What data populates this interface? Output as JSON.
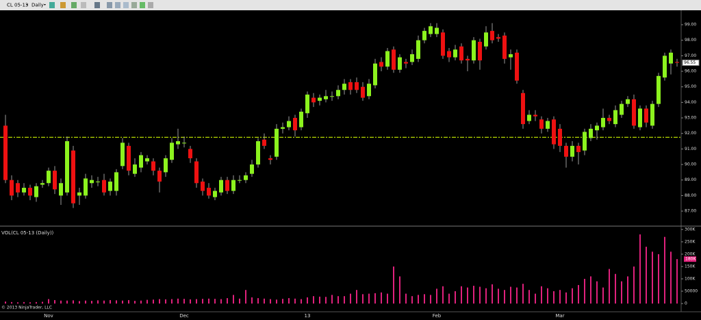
{
  "toolbar": {
    "symbol": "CL 05-13",
    "interval": "Daily"
  },
  "copyright": "© 2013 NinjaTrader, LLC",
  "chart_data": [
    {
      "type": "candlestick",
      "categories": [
        null,
        null,
        null,
        null,
        null,
        null,
        null,
        "Nov",
        null,
        null,
        null,
        null,
        null,
        null,
        null,
        null,
        null,
        null,
        null,
        null,
        null,
        null,
        null,
        null,
        null,
        null,
        null,
        null,
        null,
        "Dec",
        null,
        null,
        null,
        null,
        null,
        null,
        null,
        null,
        null,
        null,
        null,
        null,
        null,
        null,
        null,
        null,
        null,
        null,
        null,
        "13",
        null,
        null,
        null,
        null,
        null,
        null,
        null,
        null,
        null,
        null,
        null,
        null,
        null,
        null,
        null,
        null,
        null,
        null,
        null,
        null,
        "Feb",
        null,
        null,
        null,
        null,
        null,
        null,
        null,
        null,
        null,
        null,
        null,
        null,
        null,
        null,
        null,
        null,
        null,
        null,
        null,
        "Mar",
        null,
        null,
        null,
        null,
        null,
        null,
        null,
        null,
        null,
        null,
        null,
        null,
        null,
        null,
        null,
        null,
        null,
        null,
        null
      ],
      "open": [
        92.5,
        89.0,
        88.8,
        88.2,
        88.5,
        87.9,
        88.7,
        88.8,
        89.6,
        88.0,
        88.2,
        90.9,
        88.0,
        88.0,
        88.8,
        88.9,
        89.0,
        88.3,
        88.3,
        89.9,
        91.2,
        89.4,
        89.8,
        90.2,
        90.2,
        89.6,
        89.5,
        90.3,
        91.3,
        91.4,
        91.0,
        90.2,
        88.9,
        88.5,
        87.9,
        88.2,
        89.0,
        88.3,
        89.0,
        89.0,
        89.4,
        90.0,
        91.6,
        90.4,
        90.5,
        92.3,
        92.4,
        93.0,
        92.4,
        93.3,
        94.3,
        94.1,
        94.2,
        94.4,
        94.4,
        94.8,
        95.3,
        95.3,
        95.0,
        94.4,
        95.1,
        96.6,
        96.3,
        97.4,
        96.1,
        96.6,
        96.6,
        96.8,
        98.0,
        98.4,
        98.4,
        98.5,
        97.3,
        96.9,
        97.6,
        96.8,
        96.7,
        97.9,
        97.6,
        98.6,
        98.2,
        98.3,
        96.9,
        97.2,
        94.6,
        92.8,
        93.2,
        92.9,
        92.3,
        92.9,
        92.3,
        91.2,
        90.5,
        91.2,
        90.9,
        91.7,
        92.2,
        92.4,
        93.0,
        92.6,
        93.2,
        93.9,
        94.2,
        92.4,
        93.6,
        92.5,
        93.9,
        95.6,
        96.5,
        96.6
      ],
      "high": [
        93.2,
        89.3,
        89.0,
        88.8,
        88.7,
        88.8,
        89.0,
        89.8,
        89.9,
        89.1,
        91.8,
        91.2,
        88.5,
        89.4,
        89.3,
        89.2,
        89.4,
        89.1,
        89.7,
        91.7,
        91.4,
        90.4,
        90.8,
        90.6,
        90.4,
        89.8,
        90.6,
        91.7,
        92.3,
        91.8,
        91.2,
        90.4,
        89.1,
        88.8,
        88.5,
        89.2,
        89.2,
        89.3,
        89.3,
        89.5,
        90.3,
        91.7,
        92.0,
        90.6,
        92.6,
        92.7,
        93.1,
        93.2,
        93.6,
        94.7,
        94.6,
        94.5,
        94.8,
        94.7,
        95.1,
        95.5,
        95.5,
        95.6,
        95.3,
        95.5,
        96.8,
        96.9,
        97.5,
        97.6,
        97.1,
        96.8,
        97.4,
        98.3,
        98.8,
        99.1,
        99.1,
        98.7,
        97.5,
        97.7,
        97.8,
        97.0,
        98.2,
        98.1,
        98.9,
        99.1,
        98.4,
        98.5,
        97.4,
        97.4,
        94.8,
        93.5,
        93.5,
        93.1,
        93.0,
        93.1,
        92.6,
        91.4,
        91.5,
        91.4,
        92.3,
        92.6,
        92.7,
        93.6,
        93.2,
        93.8,
        94.1,
        94.4,
        94.5,
        93.8,
        93.8,
        94.1,
        95.9,
        97.2,
        97.4,
        96.8
      ],
      "low": [
        88.8,
        87.7,
        87.9,
        88.0,
        87.7,
        87.6,
        88.5,
        88.6,
        88.1,
        87.4,
        88.0,
        87.2,
        87.4,
        87.8,
        88.5,
        88.6,
        88.0,
        88.0,
        88.0,
        89.7,
        89.3,
        89.2,
        89.5,
        90.0,
        89.3,
        88.2,
        89.2,
        90.1,
        91.0,
        91.1,
        90.1,
        88.5,
        88.0,
        87.8,
        87.7,
        88.0,
        88.1,
        88.1,
        88.8,
        88.8,
        89.2,
        89.8,
        91.0,
        90.0,
        90.3,
        92.0,
        92.2,
        91.8,
        92.2,
        93.0,
        93.7,
        93.8,
        94.0,
        94.1,
        94.2,
        94.5,
        94.5,
        94.6,
        94.1,
        94.2,
        94.9,
        96.0,
        96.1,
        95.9,
        95.9,
        96.2,
        96.4,
        96.6,
        97.8,
        98.2,
        98.2,
        96.8,
        96.6,
        96.7,
        96.5,
        96.0,
        96.5,
        96.1,
        97.4,
        97.8,
        97.9,
        96.5,
        96.1,
        95.2,
        92.3,
        92.6,
        92.8,
        92.0,
        92.1,
        91.0,
        90.8,
        89.8,
        90.2,
        90.0,
        90.6,
        91.5,
        91.6,
        92.2,
        92.6,
        92.4,
        93.0,
        93.7,
        92.3,
        92.2,
        92.4,
        92.3,
        93.7,
        95.4,
        95.8,
        96.3
      ],
      "close": [
        89.0,
        88.0,
        88.2,
        88.5,
        88.0,
        88.6,
        88.8,
        89.6,
        88.4,
        88.8,
        91.5,
        87.5,
        88.2,
        89.1,
        89.0,
        88.9,
        88.2,
        88.9,
        89.5,
        91.4,
        89.6,
        90.0,
        90.6,
        90.4,
        89.6,
        88.9,
        90.4,
        91.4,
        91.5,
        91.4,
        90.4,
        88.8,
        88.3,
        88.0,
        88.3,
        89.0,
        88.3,
        89.0,
        89.0,
        89.3,
        90.0,
        91.5,
        91.2,
        90.3,
        92.3,
        92.4,
        92.8,
        92.2,
        93.4,
        94.5,
        94.0,
        94.3,
        94.4,
        94.4,
        94.8,
        95.2,
        94.8,
        94.8,
        94.3,
        95.2,
        96.5,
        96.3,
        97.3,
        96.1,
        96.9,
        96.5,
        97.1,
        98.0,
        98.6,
        98.9,
        98.8,
        97.0,
        96.9,
        97.4,
        96.7,
        96.7,
        98.0,
        96.7,
        98.5,
        98.0,
        98.1,
        96.8,
        97.1,
        95.4,
        92.6,
        93.2,
        93.1,
        92.3,
        92.8,
        91.3,
        91.2,
        90.5,
        91.2,
        90.8,
        92.1,
        92.3,
        92.5,
        93.0,
        92.8,
        93.5,
        93.9,
        94.2,
        92.5,
        93.6,
        92.7,
        93.9,
        95.7,
        97.0,
        97.2,
        96.55
      ],
      "up_color": "#8cf21e",
      "down_color": "#ee1111",
      "wick_color": "#9a9a9a",
      "reference_line": {
        "value": 91.75,
        "color": "#b5d900"
      },
      "ylim": [
        86.12,
        99.84
      ],
      "yticks": [
        {
          "value": 87,
          "label": "87.00"
        },
        {
          "value": 88,
          "label": "88.00"
        },
        {
          "value": 89,
          "label": "89.00"
        },
        {
          "value": 90,
          "label": "90.00"
        },
        {
          "value": 91,
          "label": "91.00"
        },
        {
          "value": 92,
          "label": "92.00"
        },
        {
          "value": 93,
          "label": "93.00"
        },
        {
          "value": 94,
          "label": "94.00"
        },
        {
          "value": 95,
          "label": "95.00"
        },
        {
          "value": 96,
          "label": "96.00"
        },
        {
          "value": 97,
          "label": "97.00"
        },
        {
          "value": 98,
          "label": "98.00"
        },
        {
          "value": 99,
          "label": "99.00"
        }
      ]
    },
    {
      "type": "bar",
      "title": "VOL(CL 05-13 (Daily))",
      "values": [
        8000,
        6000,
        5000,
        6000,
        5000,
        6000,
        7000,
        18000,
        14000,
        12000,
        12000,
        13000,
        10000,
        12000,
        11000,
        13000,
        12000,
        14000,
        13000,
        12000,
        14000,
        11000,
        12000,
        15000,
        16000,
        18000,
        17000,
        18000,
        20000,
        19000,
        17000,
        18000,
        19000,
        20000,
        19000,
        18000,
        22000,
        35000,
        20000,
        55000,
        25000,
        22000,
        20000,
        18000,
        16000,
        19000,
        22000,
        20000,
        18000,
        25000,
        30000,
        28000,
        27000,
        35000,
        30000,
        30000,
        40000,
        55000,
        38000,
        40000,
        42000,
        45000,
        40000,
        150000,
        110000,
        40000,
        30000,
        35000,
        38000,
        35000,
        60000,
        70000,
        40000,
        50000,
        70000,
        65000,
        72000,
        68000,
        62000,
        78000,
        60000,
        55000,
        68000,
        65000,
        80000,
        55000,
        40000,
        70000,
        62000,
        50000,
        55000,
        45000,
        62000,
        75000,
        100000,
        110000,
        90000,
        65000,
        140000,
        120000,
        90000,
        110000,
        150000,
        280000,
        230000,
        210000,
        200000,
        270000,
        210000,
        180000
      ],
      "last_value_label": "180K",
      "color": "#e0217c",
      "ylim": [
        0,
        308000
      ],
      "yticks": [
        0,
        50000,
        {
          "value": 100000,
          "label": "100K"
        },
        {
          "value": 150000,
          "label": "150K"
        },
        {
          "value": 200000,
          "label": "200K"
        },
        {
          "value": 250000,
          "label": "250K"
        },
        {
          "value": 300000,
          "label": "300K"
        }
      ]
    }
  ]
}
